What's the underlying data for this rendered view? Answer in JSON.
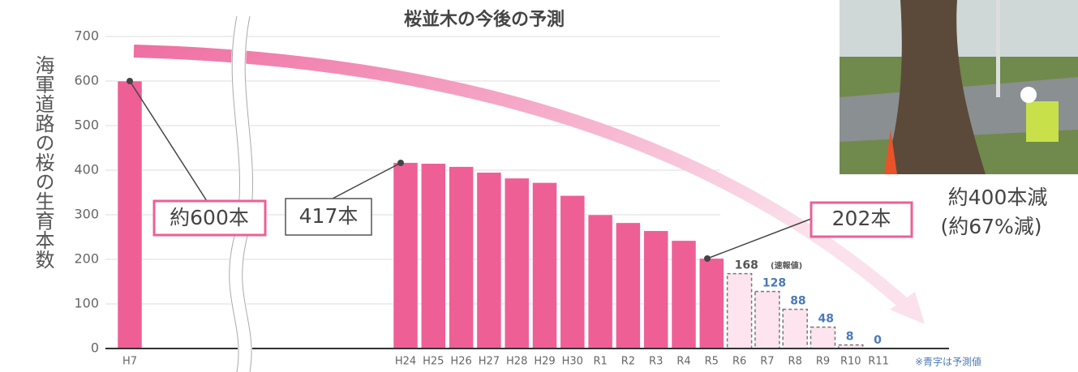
{
  "chart_data": {
    "type": "bar",
    "title": "桜並木の今後の予測",
    "y_label": "海軍道路の桜の生育本数",
    "categories": [
      "H7",
      "H24",
      "H25",
      "H26",
      "H27",
      "H28",
      "H29",
      "H30",
      "R1",
      "R2",
      "R3",
      "R4",
      "R5",
      "R6",
      "R7",
      "R8",
      "R9",
      "R10",
      "R11"
    ],
    "series": [
      {
        "color": "#ee5f96",
        "values": [
          600,
          417,
          415,
          408,
          395,
          382,
          372,
          343,
          300,
          282,
          264,
          242,
          202,
          null,
          null,
          null,
          null,
          null,
          null
        ]
      },
      {
        "color": "#fde4ee",
        "border": "#777777",
        "dashed": true,
        "values": [
          null,
          null,
          null,
          null,
          null,
          null,
          null,
          null,
          null,
          null,
          null,
          null,
          null,
          168,
          128,
          88,
          48,
          8,
          0
        ],
        "value_label_colors": [
          null,
          null,
          null,
          null,
          null,
          null,
          null,
          null,
          null,
          null,
          null,
          null,
          null,
          "#555555",
          "#4a7ab8",
          "#4a7ab8",
          "#4a7ab8",
          "#4a7ab8",
          "#4a7ab8"
        ]
      }
    ],
    "ylim": [
      0,
      700
    ],
    "yticks": [
      0,
      100,
      200,
      300,
      400,
      500,
      600,
      700
    ],
    "grid": true,
    "annotations": {
      "h7": "約600本",
      "h24": "417本",
      "r5": "202本",
      "decrease": "約400本減",
      "decrease_pct": "(約67%減)",
      "preliminary": "(速報値)",
      "note": "※青字は予測値"
    }
  }
}
